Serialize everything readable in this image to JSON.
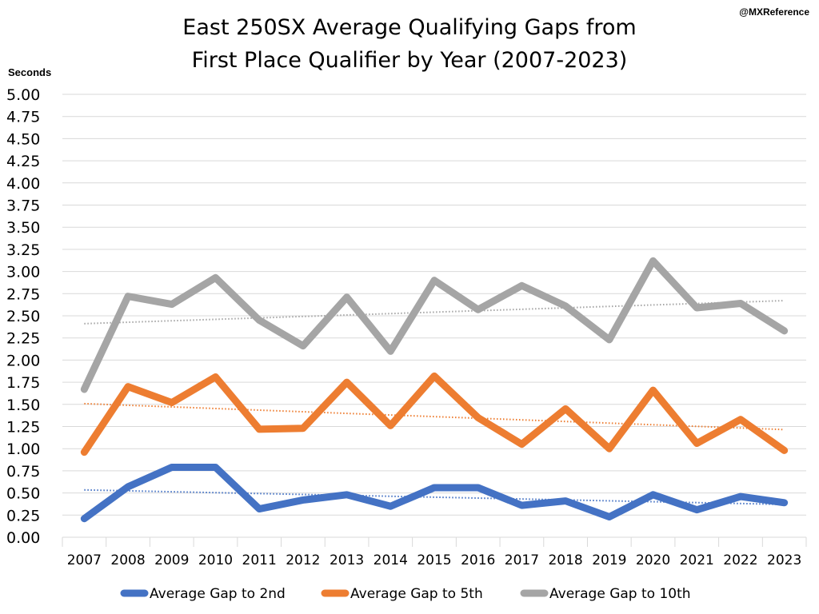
{
  "chart_data": {
    "type": "line",
    "title_lines": [
      "East 250SX Average Qualifying Gaps from",
      "First Place Qualifier by Year (2007-2023)"
    ],
    "watermark": "@MXReference",
    "ylabel": "Seconds",
    "xlabel": "",
    "ylim": [
      0,
      5
    ],
    "ytick_step": 0.25,
    "y_tick_labels": [
      "0.00",
      "0.25",
      "0.50",
      "0.75",
      "1.00",
      "1.25",
      "1.50",
      "1.75",
      "2.00",
      "2.25",
      "2.50",
      "2.75",
      "3.00",
      "3.25",
      "3.50",
      "3.75",
      "4.00",
      "4.25",
      "4.50",
      "4.75",
      "5.00"
    ],
    "grid": true,
    "legend_position": "bottom",
    "categories": [
      "2007",
      "2008",
      "2009",
      "2010",
      "2011",
      "2012",
      "2013",
      "2014",
      "2015",
      "2016",
      "2017",
      "2018",
      "2019",
      "2020",
      "2021",
      "2022",
      "2023"
    ],
    "series": [
      {
        "name": "Average Gap to 2nd",
        "color": "#4472C4",
        "trendline": "linear",
        "values": [
          0.21,
          0.57,
          0.79,
          0.79,
          0.32,
          0.42,
          0.48,
          0.35,
          0.56,
          0.56,
          0.36,
          0.41,
          0.23,
          0.48,
          0.31,
          0.46,
          0.39
        ]
      },
      {
        "name": "Average Gap to 5th",
        "color": "#ED7D31",
        "trendline": "linear",
        "values": [
          0.96,
          1.7,
          1.52,
          1.81,
          1.22,
          1.23,
          1.75,
          1.26,
          1.82,
          1.35,
          1.05,
          1.45,
          1.0,
          1.66,
          1.06,
          1.33,
          0.98
        ]
      },
      {
        "name": "Average Gap to 10th",
        "color": "#A5A5A5",
        "trendline": "linear",
        "values": [
          1.67,
          2.72,
          2.63,
          2.93,
          2.45,
          2.16,
          2.71,
          2.1,
          2.9,
          2.57,
          2.84,
          2.61,
          2.23,
          3.12,
          2.59,
          2.64,
          2.33
        ]
      }
    ]
  }
}
